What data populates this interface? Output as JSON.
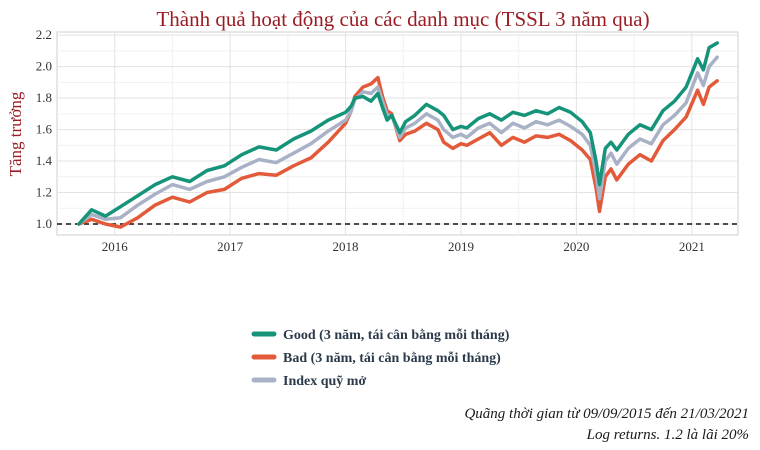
{
  "chart_data": {
    "type": "line",
    "title": "Thành quả hoạt động của các danh mục (TSSL 3 năm qua)",
    "xlabel": "",
    "ylabel": "Tăng trưởng",
    "xlim": [
      2015.5,
      2021.4
    ],
    "ylim": [
      0.93,
      2.22
    ],
    "x_ticks": [
      2016,
      2017,
      2018,
      2019,
      2020,
      2021
    ],
    "y_ticks": [
      1.0,
      1.2,
      1.4,
      1.6,
      1.8,
      2.0,
      2.2
    ],
    "y_tick_labels": [
      "1.0",
      "1.2",
      "1.4",
      "1.6",
      "1.8",
      "2.0",
      "2.2"
    ],
    "reference_line": {
      "y": 1.0,
      "style": "dashed",
      "color": "#111111"
    },
    "grid": true,
    "legend_position": "bottom-center",
    "x": [
      2015.69,
      2015.8,
      2015.92,
      2016.05,
      2016.2,
      2016.35,
      2016.5,
      2016.65,
      2016.8,
      2016.95,
      2017.1,
      2017.25,
      2017.4,
      2017.55,
      2017.7,
      2017.85,
      2018.0,
      2018.05,
      2018.08,
      2018.15,
      2018.22,
      2018.28,
      2018.32,
      2018.36,
      2018.4,
      2018.47,
      2018.52,
      2018.6,
      2018.7,
      2018.8,
      2018.85,
      2018.93,
      2019.0,
      2019.05,
      2019.15,
      2019.25,
      2019.35,
      2019.45,
      2019.55,
      2019.65,
      2019.75,
      2019.85,
      2019.95,
      2020.05,
      2020.12,
      2020.17,
      2020.2,
      2020.25,
      2020.3,
      2020.35,
      2020.45,
      2020.55,
      2020.65,
      2020.75,
      2020.85,
      2020.95,
      2021.05,
      2021.1,
      2021.15,
      2021.22
    ],
    "series": [
      {
        "name": "Good (3 năm, tái cân bằng mỗi tháng)",
        "color": "#16947a",
        "values": [
          1.0,
          1.09,
          1.05,
          1.11,
          1.18,
          1.25,
          1.3,
          1.27,
          1.34,
          1.37,
          1.44,
          1.49,
          1.47,
          1.54,
          1.59,
          1.66,
          1.71,
          1.75,
          1.8,
          1.81,
          1.78,
          1.83,
          1.74,
          1.66,
          1.69,
          1.58,
          1.65,
          1.69,
          1.76,
          1.72,
          1.69,
          1.6,
          1.62,
          1.61,
          1.67,
          1.7,
          1.66,
          1.71,
          1.69,
          1.72,
          1.7,
          1.74,
          1.71,
          1.65,
          1.58,
          1.4,
          1.25,
          1.48,
          1.52,
          1.47,
          1.57,
          1.63,
          1.6,
          1.72,
          1.78,
          1.87,
          2.05,
          1.98,
          2.12,
          2.15
        ]
      },
      {
        "name": "Bad (3 năm, tái cân bằng mỗi tháng)",
        "color": "#e35a3a",
        "values": [
          1.0,
          1.03,
          1.0,
          0.98,
          1.04,
          1.12,
          1.17,
          1.14,
          1.2,
          1.22,
          1.29,
          1.32,
          1.31,
          1.37,
          1.42,
          1.52,
          1.64,
          1.72,
          1.81,
          1.87,
          1.89,
          1.93,
          1.81,
          1.72,
          1.7,
          1.53,
          1.57,
          1.59,
          1.64,
          1.6,
          1.52,
          1.48,
          1.51,
          1.5,
          1.54,
          1.58,
          1.5,
          1.55,
          1.52,
          1.56,
          1.55,
          1.57,
          1.53,
          1.47,
          1.41,
          1.23,
          1.08,
          1.3,
          1.35,
          1.28,
          1.38,
          1.44,
          1.4,
          1.53,
          1.6,
          1.68,
          1.85,
          1.76,
          1.87,
          1.91
        ]
      },
      {
        "name": "Index quỹ mở",
        "color": "#a9b1c6",
        "values": [
          1.0,
          1.06,
          1.03,
          1.04,
          1.12,
          1.19,
          1.25,
          1.22,
          1.27,
          1.3,
          1.36,
          1.41,
          1.39,
          1.45,
          1.51,
          1.59,
          1.66,
          1.72,
          1.79,
          1.84,
          1.83,
          1.87,
          1.78,
          1.69,
          1.69,
          1.55,
          1.61,
          1.64,
          1.7,
          1.66,
          1.6,
          1.55,
          1.57,
          1.55,
          1.61,
          1.64,
          1.58,
          1.64,
          1.61,
          1.65,
          1.63,
          1.66,
          1.62,
          1.57,
          1.5,
          1.32,
          1.16,
          1.4,
          1.45,
          1.38,
          1.48,
          1.54,
          1.51,
          1.63,
          1.69,
          1.77,
          1.96,
          1.88,
          2.0,
          2.06
        ]
      }
    ],
    "captions": [
      "Quãng thời gian từ 09/09/2015 đến 21/03/2021",
      "Log returns. 1.2 là lãi 20%"
    ]
  }
}
